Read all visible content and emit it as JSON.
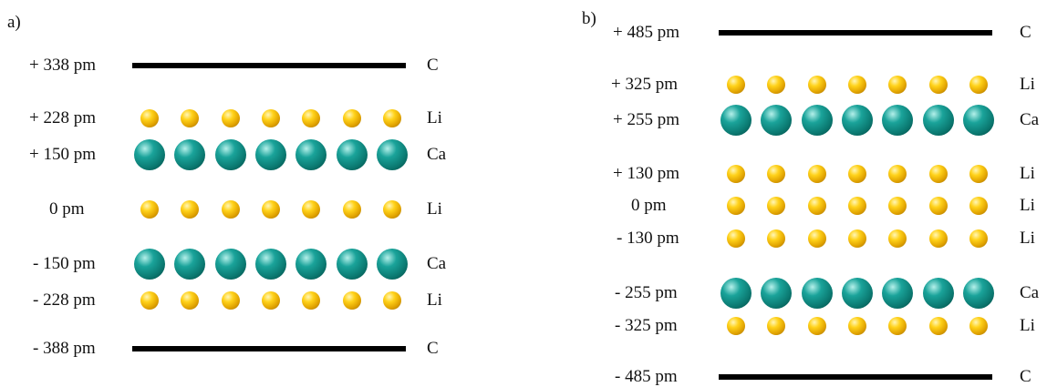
{
  "panel_a": {
    "label": "a)",
    "rows": [
      {
        "pos": "+ 338 pm",
        "element": "C",
        "kind": "bar"
      },
      {
        "pos": "+ 228 pm",
        "element": "Li",
        "kind": "li"
      },
      {
        "pos": "+ 150 pm",
        "element": "Ca",
        "kind": "ca"
      },
      {
        "pos": "0 pm",
        "element": "Li",
        "kind": "li"
      },
      {
        "pos": "- 150 pm",
        "element": "Ca",
        "kind": "ca"
      },
      {
        "pos": "- 228 pm",
        "element": "Li",
        "kind": "li"
      },
      {
        "pos": "- 388 pm",
        "element": "C",
        "kind": "bar"
      }
    ]
  },
  "panel_b": {
    "label": "b)",
    "rows": [
      {
        "pos": "+ 485 pm",
        "element": "C",
        "kind": "bar"
      },
      {
        "pos": "+ 325 pm",
        "element": "Li",
        "kind": "li"
      },
      {
        "pos": "+ 255 pm",
        "element": "Ca",
        "kind": "ca"
      },
      {
        "pos": "+ 130 pm",
        "element": "Li",
        "kind": "li"
      },
      {
        "pos": "0 pm",
        "element": "Li",
        "kind": "li"
      },
      {
        "pos": "- 130 pm",
        "element": "Li",
        "kind": "li"
      },
      {
        "pos": "- 255 pm",
        "element": "Ca",
        "kind": "ca"
      },
      {
        "pos": "- 325 pm",
        "element": "Li",
        "kind": "li"
      },
      {
        "pos": "- 485 pm",
        "element": "C",
        "kind": "bar"
      }
    ]
  },
  "atoms_per_row": 7,
  "colors": {
    "li": "#f0b800",
    "ca": "#0b7a72",
    "bar": "#000000"
  }
}
